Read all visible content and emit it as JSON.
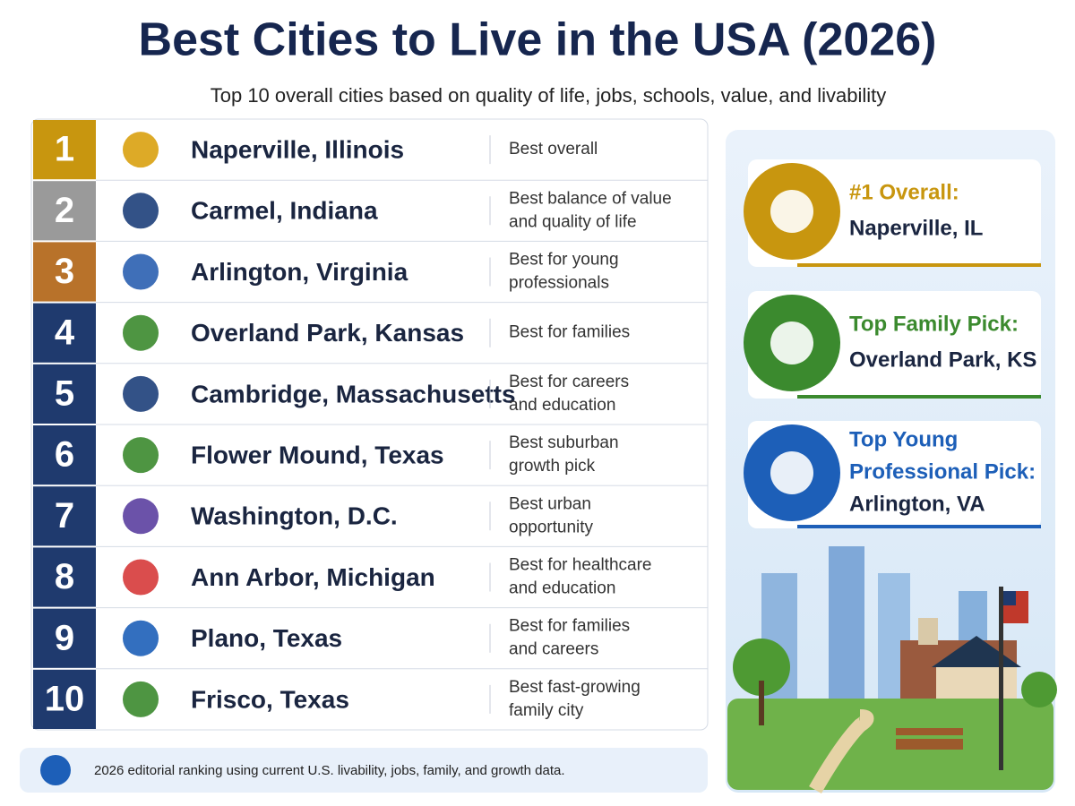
{
  "header": {
    "title": "Best Cities to Live in the USA (2026)",
    "subtitle": "Top 10 overall cities based on quality of life, jobs, schools, value, and livability"
  },
  "rows": [
    {
      "rank": "1",
      "city": "Naperville, Illinois",
      "note": [
        "Best overall"
      ]
    },
    {
      "rank": "2",
      "city": "Carmel, Indiana",
      "note": [
        "Best balance of value",
        "and quality of life"
      ]
    },
    {
      "rank": "3",
      "city": "Arlington, Virginia",
      "note": [
        "Best for  young",
        "professionals"
      ]
    },
    {
      "rank": "4",
      "city": "Overland Park, Kansas",
      "note": [
        "Best for families"
      ]
    },
    {
      "rank": "5",
      "city": "Cambridge, Massachusetts",
      "note": [
        "Best for careers",
        "and education"
      ]
    },
    {
      "rank": "6",
      "city": "Flower Mound, Texas",
      "note": [
        "Best suburban",
        "growth pick"
      ]
    },
    {
      "rank": "7",
      "city": "Washington, D.C.",
      "note": [
        "Best urban",
        "opportunity"
      ]
    },
    {
      "rank": "8",
      "city": "Ann Arbor, Michigan",
      "note": [
        "Best for healthcare",
        "and education"
      ]
    },
    {
      "rank": "9",
      "city": "Plano, Texas",
      "note": [
        "Best for families",
        "and careers"
      ]
    },
    {
      "rank": "10",
      "city": "Frisco, Texas",
      "note": [
        "Best fast-growing",
        "family city"
      ]
    }
  ],
  "highlights": [
    {
      "label": [
        "#1 Overall:"
      ],
      "value": "Naperville, IL"
    },
    {
      "label": [
        "Top Family Pick:"
      ],
      "value": "Overland Park, KS"
    },
    {
      "label": [
        "Top Young",
        "Professional Pick:"
      ],
      "value": "Arlington, VA"
    }
  ],
  "footer": "2026 editorial ranking using current U.S. livability, jobs, family, and growth data."
}
